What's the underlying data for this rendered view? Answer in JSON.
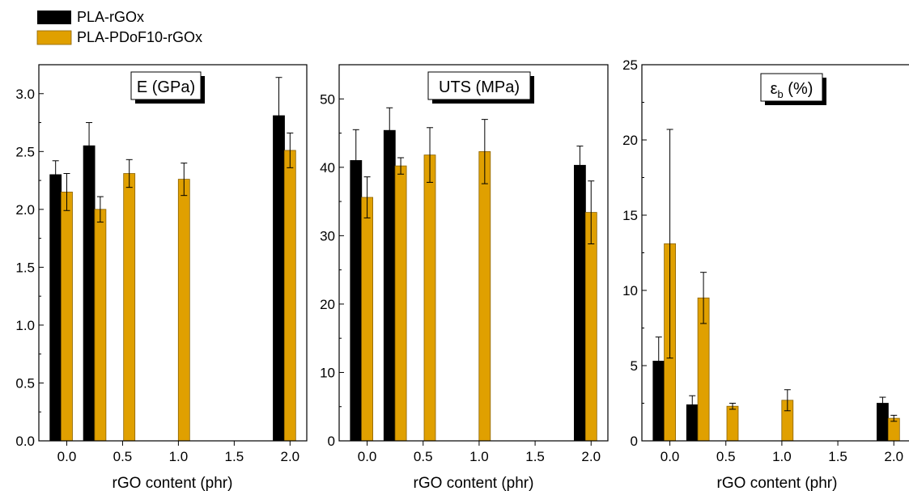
{
  "legend": {
    "placement": "top-left",
    "entries": [
      {
        "label": "PLA-rGOx",
        "color": "#000000"
      },
      {
        "label": "PLA-PDoF10-rGOx",
        "color": "#E0A000"
      }
    ]
  },
  "colors": {
    "series1": "#000000",
    "series2": "#E0A000",
    "axis": "#000000"
  },
  "chart_data": [
    {
      "type": "bar",
      "title": "E (GPa)",
      "xlabel": "rGO content (phr)",
      "ylabel": "",
      "xlim": [
        -0.25,
        2.15
      ],
      "ylim": [
        0,
        3.25
      ],
      "xticks": [
        0.0,
        0.5,
        1.0,
        1.5,
        2.0
      ],
      "xtick_labels": [
        "0.0",
        "0.5",
        "1.0",
        "1.5",
        "2.0"
      ],
      "yticks": [
        0.0,
        0.5,
        1.0,
        1.5,
        2.0,
        2.5,
        3.0
      ],
      "ytick_labels": [
        "0.0",
        "0.5",
        "1.0",
        "1.5",
        "2.0",
        "2.5",
        "3.0"
      ],
      "series": [
        {
          "name": "PLA-rGOx",
          "points": [
            {
              "x": -0.1,
              "y": 2.3,
              "err": 0.12
            },
            {
              "x": 0.2,
              "y": 2.55,
              "err": 0.2
            },
            {
              "x": 1.9,
              "y": 2.81,
              "err": 0.33
            }
          ]
        },
        {
          "name": "PLA-PDoF10-rGOx",
          "points": [
            {
              "x": 0.0,
              "y": 2.15,
              "err": 0.16
            },
            {
              "x": 0.3,
              "y": 2.0,
              "err": 0.11
            },
            {
              "x": 0.56,
              "y": 2.31,
              "err": 0.12
            },
            {
              "x": 1.05,
              "y": 2.26,
              "err": 0.14
            },
            {
              "x": 2.0,
              "y": 2.51,
              "err": 0.15
            }
          ]
        }
      ]
    },
    {
      "type": "bar",
      "title": "UTS (MPa)",
      "xlabel": "rGO content (phr)",
      "ylabel": "",
      "xlim": [
        -0.25,
        2.15
      ],
      "ylim": [
        0,
        55
      ],
      "xticks": [
        0.0,
        0.5,
        1.0,
        1.5,
        2.0
      ],
      "xtick_labels": [
        "0.0",
        "0.5",
        "1.0",
        "1.5",
        "2.0"
      ],
      "yticks": [
        0,
        10,
        20,
        30,
        40,
        50
      ],
      "ytick_labels": [
        "0",
        "10",
        "20",
        "30",
        "40",
        "50"
      ],
      "series": [
        {
          "name": "PLA-rGOx",
          "points": [
            {
              "x": -0.1,
              "y": 41.0,
              "err": 4.5
            },
            {
              "x": 0.2,
              "y": 45.4,
              "err": 3.3
            },
            {
              "x": 1.9,
              "y": 40.3,
              "err": 2.8
            }
          ]
        },
        {
          "name": "PLA-PDoF10-rGOx",
          "points": [
            {
              "x": 0.0,
              "y": 35.6,
              "err": 3.0
            },
            {
              "x": 0.3,
              "y": 40.2,
              "err": 1.2
            },
            {
              "x": 0.56,
              "y": 41.8,
              "err": 4.0
            },
            {
              "x": 1.05,
              "y": 42.3,
              "err": 4.7
            },
            {
              "x": 2.0,
              "y": 33.4,
              "err": 4.6
            }
          ]
        }
      ]
    },
    {
      "type": "bar",
      "title": "εb (%)",
      "title_main": "ε",
      "title_sub": "b",
      "title_tail": " (%)",
      "xlabel": "rGO content (phr)",
      "ylabel": "",
      "xlim": [
        -0.25,
        2.15
      ],
      "ylim": [
        0,
        25
      ],
      "xticks": [
        0.0,
        0.5,
        1.0,
        1.5,
        2.0
      ],
      "xtick_labels": [
        "0.0",
        "0.5",
        "1.0",
        "1.5",
        "2.0"
      ],
      "yticks": [
        0,
        5,
        10,
        15,
        20,
        25
      ],
      "ytick_labels": [
        "0",
        "5",
        "10",
        "15",
        "20",
        "25"
      ],
      "series": [
        {
          "name": "PLA-rGOx",
          "points": [
            {
              "x": -0.1,
              "y": 5.3,
              "err": 1.6
            },
            {
              "x": 0.2,
              "y": 2.4,
              "err": 0.6
            },
            {
              "x": 1.9,
              "y": 2.5,
              "err": 0.4
            }
          ]
        },
        {
          "name": "PLA-PDoF10-rGOx",
          "points": [
            {
              "x": 0.0,
              "y": 13.1,
              "err": 7.6
            },
            {
              "x": 0.3,
              "y": 9.5,
              "err": 1.7
            },
            {
              "x": 0.56,
              "y": 2.3,
              "err": 0.2
            },
            {
              "x": 1.05,
              "y": 2.7,
              "err": 0.7
            },
            {
              "x": 2.0,
              "y": 1.5,
              "err": 0.2
            }
          ]
        }
      ]
    }
  ]
}
